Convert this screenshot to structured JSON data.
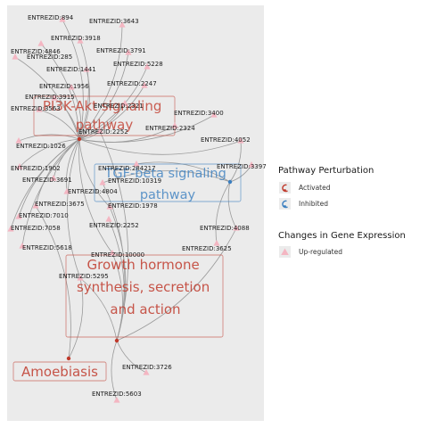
{
  "colors": {
    "panel_bg": "#ebebeb",
    "edge": "#9a9a9a",
    "upregulated": "#f4b6c2",
    "activated": "#c0392b",
    "inhibited": "#3a7ebf"
  },
  "pathways": [
    {
      "id": "pi3k",
      "lines": [
        "PI3K-Akt signaling",
        "pathway"
      ],
      "status": "activated"
    },
    {
      "id": "tgf",
      "lines": [
        "TGF-beta signaling",
        "pathway"
      ],
      "status": "inhibited"
    },
    {
      "id": "gh",
      "lines": [
        "Growth hormone",
        "synthesis, secretion",
        "and action"
      ],
      "status": "activated"
    },
    {
      "id": "amoeb",
      "lines": [
        "Amoebiasis"
      ],
      "status": "activated"
    }
  ],
  "genes": [
    "ENTREZID:894",
    "ENTREZID:3643",
    "ENTREZID:3918",
    "ENTREZID:4846",
    "ENTREZID:285",
    "ENTREZID:3791",
    "ENTREZID:5228",
    "ENTREZID:1441",
    "ENTREZID:2247",
    "ENTREZID:1956",
    "ENTREZID:3915",
    "ENTREZID:2321",
    "ENTREZID:3563",
    "ENTREZID:3400",
    "ENTREZID:2324",
    "ENTREZID:2252b",
    "ENTREZID:4052",
    "ENTREZID:1026",
    "ENTREZID:284217",
    "ENTREZID:3397",
    "ENTREZID:1902",
    "ENTREZID:3691",
    "ENTREZID:10319",
    "ENTREZID:4804",
    "ENTREZID:3675",
    "ENTREZID:1978",
    "ENTREZID:7010",
    "ENTREZID:7058",
    "ENTREZID:2252",
    "ENTREZID:4088",
    "ENTREZID:5618",
    "ENTREZID:3625",
    "ENTREZID:10000",
    "ENTREZID:5295",
    "ENTREZID:3726",
    "ENTREZID:5603"
  ],
  "gene_labels": {
    "g894": "ENTREZID:894",
    "g3643": "ENTREZID:3643",
    "g3918": "ENTREZID:3918",
    "g4846": "ENTREZID:4846",
    "g285": "ENTREZID:285",
    "g3791": "ENTREZID:3791",
    "g5228": "ENTREZID:5228",
    "g1441": "ENTREZID:1441",
    "g2247": "ENTREZID:2247",
    "g1956": "ENTREZID:1956",
    "g3915": "ENTREZID:3915",
    "g2321": "ENTREZID:2321",
    "g3563": "ENTREZID:3563",
    "g3400": "ENTREZID:3400",
    "g2324": "ENTREZID:2324",
    "g2252x": "ENTREZID:2252",
    "g4052": "ENTREZID:4052",
    "g1026": "ENTREZID:1026",
    "g284217": "ENTREZID:284217",
    "g3397": "ENTREZID:3397",
    "g1902": "ENTREZID:1902",
    "g3691": "ENTREZID:3691",
    "g10319": "ENTREZID:10319",
    "g4804": "ENTREZID:4804",
    "g3675": "ENTREZID:3675",
    "g1978": "ENTREZID:1978",
    "g7010": "ENTREZID:7010",
    "g7058": "ENTREZID:7058",
    "g2252": "ENTREZID:2252",
    "g4088": "ENTREZID:4088",
    "g5618": "ENTREZID:5618",
    "g3625": "ENTREZID:3625",
    "g10000": "ENTREZID:10000",
    "g5295": "ENTREZID:5295",
    "g3726": "ENTREZID:3726",
    "g5603": "ENTREZID:5603"
  },
  "legend": {
    "perturbation_title": "Pathway Perturbation",
    "activated_label": "Activated",
    "inhibited_label": "Inhibited",
    "expression_title": "Changes in Gene Expression",
    "upregulated_label": "Up-regulated",
    "activated_icon": "curved-arrow-icon",
    "inhibited_icon": "curved-arrow-icon",
    "upregulated_icon": "triangle-icon"
  }
}
